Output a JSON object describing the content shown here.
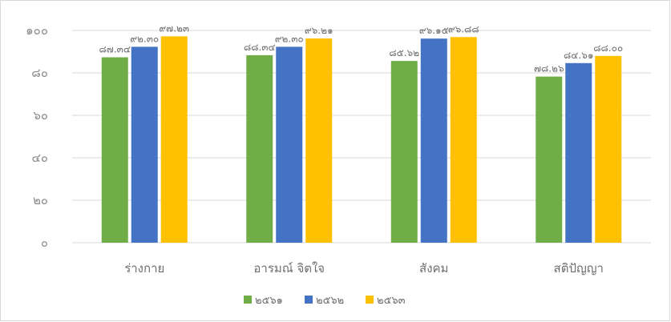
{
  "chart_data": {
    "type": "bar",
    "categories": [
      "ร่างกาย",
      "อารมณ์ จิตใจ",
      "สังคม",
      "สติปัญญา"
    ],
    "series": [
      {
        "name": "๒๕๖๑",
        "color": "#70ad47",
        "values": [
          87.34,
          88.34,
          85.62,
          78.26
        ],
        "labels": [
          "๘๗.๓๔",
          "๘๘.๓๔",
          "๘๕.๖๒",
          "๗๘.๒๖"
        ]
      },
      {
        "name": "๒๕๖๒",
        "color": "#4472c4",
        "values": [
          92.3,
          92.3,
          96.15,
          84.61
        ],
        "labels": [
          "๙๒.๓๐",
          "๙๒.๓๐",
          "๙๖.๑๕",
          "๘๔.๖๑"
        ]
      },
      {
        "name": "๒๕๖๓",
        "color": "#ffc000",
        "values": [
          97.23,
          96.21,
          96.88,
          88.0
        ],
        "labels": [
          "๙๗.๒๓",
          "๙๖.๒๑",
          "๙๖.๘๘",
          "๘๘.๐๐"
        ]
      }
    ],
    "ylim": [
      0,
      100
    ],
    "yticks": [
      0,
      20,
      40,
      60,
      80,
      100
    ],
    "ytick_labels": [
      "๐",
      "๒๐",
      "๔๐",
      "๖๐",
      "๘๐",
      "๑๐๐"
    ],
    "grid": true,
    "legend": "bottom"
  }
}
